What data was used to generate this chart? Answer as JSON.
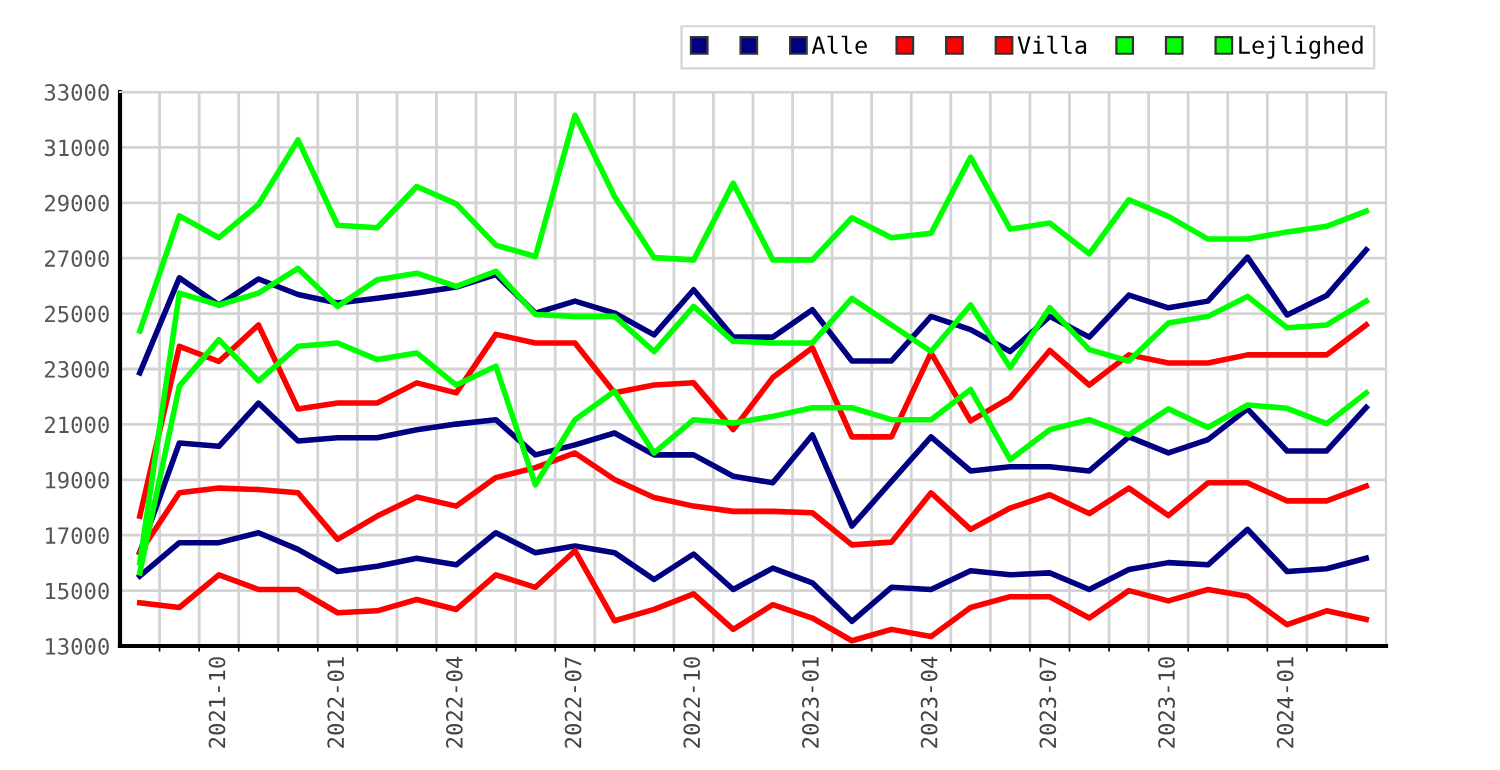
{
  "chart_data": {
    "type": "line",
    "categories": [
      null,
      null,
      "2021-10",
      null,
      null,
      "2022-01",
      null,
      null,
      "2022-04",
      null,
      null,
      "2022-07",
      null,
      null,
      "2022-10",
      null,
      null,
      "2023-01",
      null,
      null,
      "2023-04",
      null,
      null,
      "2023-07",
      null,
      null,
      "2023-10",
      null,
      null,
      "2024-01",
      null,
      null
    ],
    "series": [
      {
        "color": "#000080",
        "values": [
          15520,
          16730,
          16730,
          17090,
          16490,
          15690,
          15880,
          16170,
          15930,
          17090,
          16370,
          16610,
          16370,
          15400,
          16320,
          15040,
          15810,
          15280,
          13890,
          15120,
          15040,
          15720,
          15570,
          15640,
          15040,
          15760,
          16010,
          15930,
          17210,
          15690,
          15790,
          16170
        ]
      },
      {
        "color": "#000080",
        "values": [
          16380,
          20330,
          20210,
          21770,
          20400,
          20520,
          20520,
          20810,
          21010,
          21170,
          19900,
          20260,
          20690,
          19900,
          19900,
          19130,
          18890,
          20620,
          17330,
          18940,
          20550,
          19320,
          19470,
          19470,
          19320,
          20550,
          19970,
          20450,
          21560,
          20040,
          20040,
          21610
        ]
      },
      {
        "name": "Alle",
        "color": "#000080",
        "values": [
          22860,
          26290,
          25310,
          26250,
          25690,
          25380,
          25550,
          25740,
          25960,
          26410,
          25020,
          25450,
          25020,
          24230,
          25860,
          24150,
          24150,
          25140,
          23290,
          23290,
          24900,
          24420,
          23630,
          24900,
          24150,
          25670,
          25210,
          25450,
          27040,
          24950,
          25650,
          27300
        ]
      },
      {
        "color": "#ff0000",
        "values": [
          14560,
          14390,
          15570,
          15040,
          15040,
          14200,
          14270,
          14680,
          14320,
          15570,
          15120,
          16440,
          13910,
          14320,
          14880,
          13600,
          14490,
          14010,
          13190,
          13600,
          13340,
          14390,
          14780,
          14780,
          14010,
          15000,
          14630,
          15040,
          14800,
          13770,
          14270,
          13960
        ]
      },
      {
        "color": "#ff0000",
        "values": [
          16370,
          18530,
          18700,
          18650,
          18530,
          16850,
          17690,
          18380,
          18050,
          19080,
          19440,
          19970,
          19010,
          18360,
          18050,
          17860,
          17860,
          17810,
          16650,
          16750,
          18530,
          17210,
          17980,
          18460,
          17780,
          18700,
          17710,
          18890,
          18890,
          18240,
          18240,
          18770
        ]
      },
      {
        "name": "Villa",
        "color": "#ff0000",
        "values": [
          17690,
          23820,
          23270,
          24590,
          21560,
          21770,
          21770,
          22500,
          22140,
          24250,
          23940,
          23940,
          22140,
          22420,
          22500,
          20810,
          22690,
          23770,
          20550,
          20550,
          23580,
          21130,
          21970,
          23670,
          22420,
          23510,
          23220,
          23220,
          23510,
          23510,
          23510,
          24590
        ]
      },
      {
        "color": "#00ff00",
        "values": [
          15640,
          22380,
          24060,
          22570,
          23820,
          23940,
          23340,
          23580,
          22420,
          23100,
          18820,
          21170,
          22200,
          19970,
          21170,
          21050,
          21290,
          21600,
          21600,
          21170,
          21170,
          22260,
          19730,
          20810,
          21170,
          20620,
          21560,
          20890,
          21700,
          21580,
          21030,
          22140
        ]
      },
      {
        "color": "#00ff00",
        "values": [
          16000,
          25740,
          25310,
          25740,
          26630,
          25260,
          26220,
          26460,
          25980,
          26530,
          24970,
          24900,
          24900,
          23630,
          25260,
          24000,
          23940,
          23940,
          25550,
          24590,
          23630,
          25310,
          23050,
          25210,
          23700,
          23290,
          24660,
          24900,
          25620,
          24490,
          24590,
          25450
        ]
      },
      {
        "name": "Lejlighed",
        "color": "#00ff00",
        "values": [
          24370,
          28530,
          27740,
          28940,
          31270,
          28190,
          28100,
          29590,
          28960,
          27470,
          27060,
          32160,
          29230,
          27020,
          26940,
          29710,
          26940,
          26940,
          28460,
          27740,
          27900,
          30650,
          28050,
          28270,
          27160,
          29110,
          28510,
          27690,
          27690,
          27950,
          28150,
          28700
        ]
      }
    ],
    "ylim": [
      13000,
      33000
    ],
    "yticks": [
      13000,
      15000,
      17000,
      19000,
      21000,
      23000,
      25000,
      27000,
      29000,
      31000,
      33000
    ],
    "grid": true,
    "legend": "top right",
    "marker": "none",
    "line_style": "solid"
  }
}
